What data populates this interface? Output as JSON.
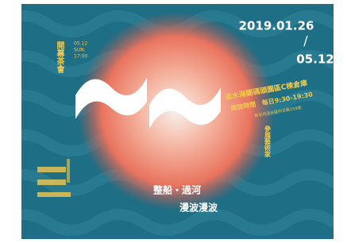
{
  "poster": {
    "dates": {
      "start": "2019.01.26",
      "separator": "/",
      "end": "05.12"
    },
    "opening": {
      "title": "開幕茶會",
      "details": [
        "05.12",
        "SUN.",
        "17:00"
      ]
    },
    "venue": {
      "name": "淡水海關碼頭園區C棟倉庫",
      "hours_label": "開放時間",
      "hours": "每日9:30-19:30",
      "address": "新北市淡水區中正路259號"
    },
    "artists": {
      "title": "參展藝術家"
    },
    "slogan": [
      "整船・過河",
      "漫波漫波"
    ]
  }
}
